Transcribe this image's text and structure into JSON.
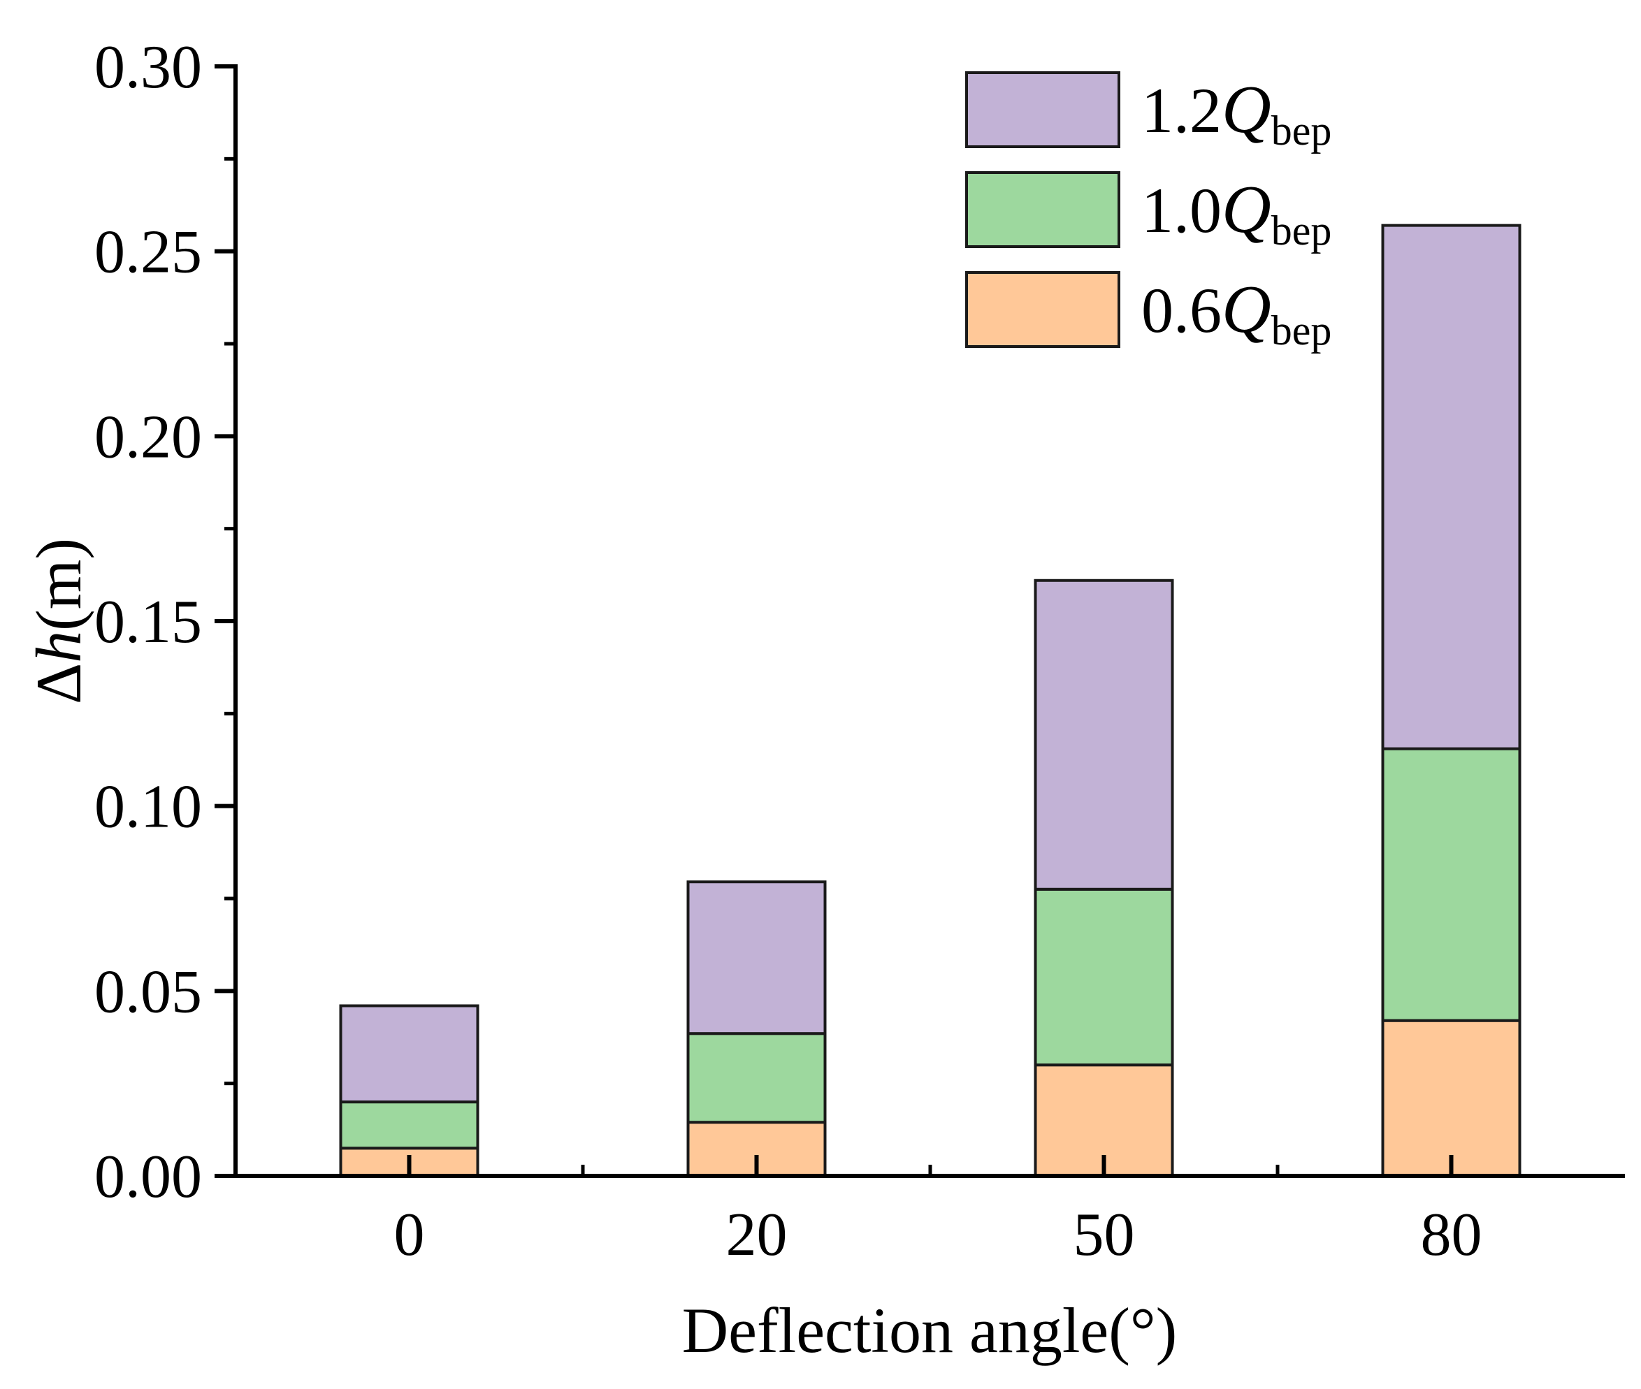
{
  "chart_data": {
    "type": "bar",
    "stacked": true,
    "categories": [
      "0",
      "20",
      "50",
      "80"
    ],
    "series": [
      {
        "name": "0.6",
        "sub": "bep",
        "color": "#FFC898",
        "values": [
          0.0075,
          0.0145,
          0.03,
          0.042
        ]
      },
      {
        "name": "1.0",
        "sub": "bep",
        "color": "#9DD89E",
        "values": [
          0.0125,
          0.024,
          0.0475,
          0.0735
        ]
      },
      {
        "name": "1.2",
        "sub": "bep",
        "color": "#C2B2D6",
        "values": [
          0.026,
          0.041,
          0.0835,
          0.1415
        ]
      }
    ],
    "yticks": [
      "0.00",
      "0.05",
      "0.10",
      "0.15",
      "0.20",
      "0.25",
      "0.30"
    ],
    "ylim": [
      0,
      0.3
    ],
    "xlabel": "Deflection angle(°)",
    "ylabel": {
      "delta": "Δ",
      "var": "h",
      "unit": "(m)"
    },
    "legend_symbol": "Q",
    "legend_position": "top-right"
  }
}
